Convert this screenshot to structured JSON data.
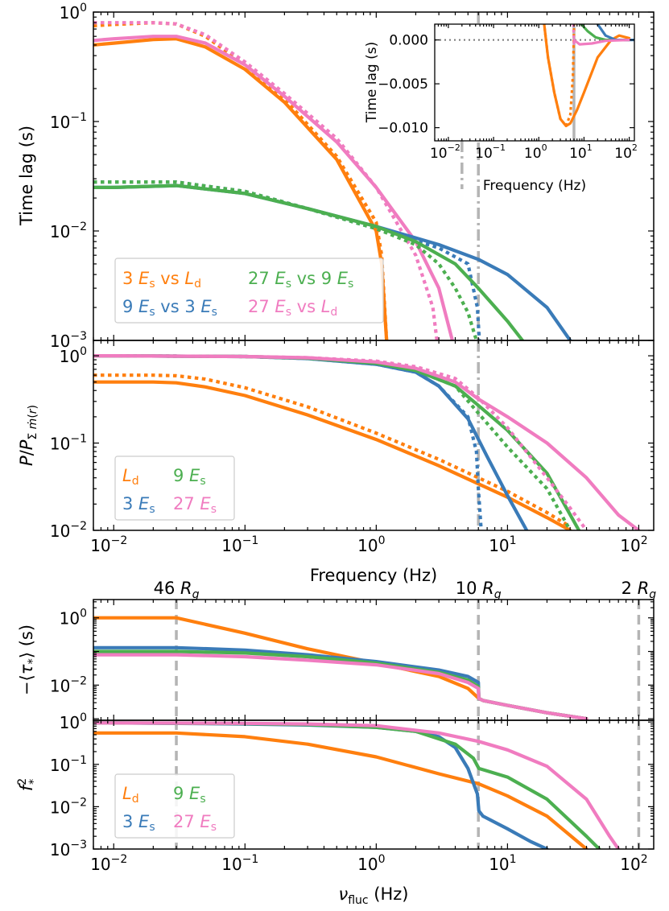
{
  "colors": {
    "orange": "#ff7f0e",
    "blue": "#3a7bb8",
    "green": "#4caf50",
    "pink": "#f07cc0",
    "gray": "#b4b4b4"
  },
  "radius_markers": [
    {
      "label": "46 R_g",
      "freq": 0.03
    },
    {
      "label": "10 R_g",
      "freq": 6.0
    },
    {
      "label": "2 R_g",
      "freq": 100
    }
  ],
  "chart_data": [
    {
      "type": "line",
      "ylabel": "Time lag (s)",
      "xlabel": "",
      "xscale": "log",
      "yscale": "log",
      "xlim": [
        0.007,
        130
      ],
      "ylim": [
        0.001,
        1.0
      ],
      "yticks": [
        "10^-3",
        "10^-2",
        "10^-1",
        "10^0"
      ],
      "vline": 6.0,
      "legend": {
        "placement": "lower-left",
        "entries": [
          "3 E_s vs L_d",
          "27 E_s vs 9 E_s",
          "9 E_s vs 3 E_s",
          "27 E_s vs L_d"
        ]
      },
      "series": [
        {
          "name": "3 E_s vs L_d",
          "color": "orange",
          "style": "solid",
          "x": [
            0.007,
            0.01,
            0.02,
            0.03,
            0.05,
            0.1,
            0.2,
            0.5,
            1,
            1.1,
            1.2
          ],
          "y": [
            0.5,
            0.52,
            0.56,
            0.57,
            0.48,
            0.3,
            0.15,
            0.045,
            0.01,
            0.005,
            0.001
          ]
        },
        {
          "name": "3 E_s vs L_d",
          "color": "orange",
          "style": "dotted",
          "x": [
            0.007,
            0.01,
            0.02,
            0.03,
            0.05,
            0.1,
            0.2,
            0.5,
            1,
            1.1,
            1.2
          ],
          "y": [
            0.75,
            0.77,
            0.8,
            0.78,
            0.6,
            0.33,
            0.16,
            0.048,
            0.012,
            0.006,
            0.001
          ]
        },
        {
          "name": "27 E_s vs L_d",
          "color": "pink",
          "style": "solid",
          "x": [
            0.007,
            0.01,
            0.02,
            0.03,
            0.05,
            0.1,
            0.2,
            0.5,
            1,
            2,
            3,
            3.8
          ],
          "y": [
            0.55,
            0.57,
            0.6,
            0.6,
            0.52,
            0.33,
            0.17,
            0.065,
            0.025,
            0.008,
            0.003,
            0.001
          ]
        },
        {
          "name": "27 E_s vs L_d",
          "color": "pink",
          "style": "dotted",
          "x": [
            0.007,
            0.01,
            0.02,
            0.03,
            0.05,
            0.1,
            0.2,
            0.5,
            1,
            2,
            2.7,
            2.9
          ],
          "y": [
            0.8,
            0.8,
            0.8,
            0.78,
            0.62,
            0.35,
            0.18,
            0.07,
            0.025,
            0.006,
            0.002,
            0.001
          ]
        },
        {
          "name": "9 E_s vs 3 E_s",
          "color": "blue",
          "style": "solid",
          "x": [
            0.007,
            0.01,
            0.03,
            0.1,
            0.3,
            1,
            3,
            6,
            10,
            20,
            30
          ],
          "y": [
            0.025,
            0.025,
            0.026,
            0.022,
            0.016,
            0.011,
            0.0075,
            0.0055,
            0.004,
            0.002,
            0.001
          ]
        },
        {
          "name": "9 E_s vs 3 E_s",
          "color": "blue",
          "style": "dotted",
          "x": [
            0.007,
            0.01,
            0.03,
            0.1,
            0.3,
            1,
            3,
            5,
            5.9,
            6.1
          ],
          "y": [
            0.028,
            0.028,
            0.028,
            0.023,
            0.016,
            0.0105,
            0.007,
            0.005,
            0.002,
            0.001
          ]
        },
        {
          "name": "27 E_s vs 9 E_s",
          "color": "green",
          "style": "solid",
          "x": [
            0.007,
            0.01,
            0.03,
            0.1,
            0.3,
            1,
            2,
            4,
            6,
            10,
            13
          ],
          "y": [
            0.025,
            0.025,
            0.026,
            0.022,
            0.016,
            0.011,
            0.008,
            0.005,
            0.003,
            0.0015,
            0.001
          ]
        },
        {
          "name": "27 E_s vs 9 E_s",
          "color": "green",
          "style": "dotted",
          "x": [
            0.007,
            0.01,
            0.03,
            0.1,
            0.3,
            1,
            2,
            3,
            4,
            5,
            5.8
          ],
          "y": [
            0.028,
            0.028,
            0.028,
            0.023,
            0.016,
            0.0105,
            0.0075,
            0.005,
            0.003,
            0.0018,
            0.001
          ]
        }
      ]
    },
    {
      "type": "line",
      "ylabel": "Time lag (s)",
      "xlabel": "Frequency (Hz)",
      "xscale": "log",
      "yscale": "linear",
      "xlim": [
        0.005,
        130
      ],
      "ylim": [
        -0.0115,
        0.0018
      ],
      "xticks": [
        "10^-2",
        "10^-1",
        "10^0",
        "10^1",
        "10^2"
      ],
      "yticks": [
        "0.000",
        "-0.005",
        "-0.010"
      ],
      "hline": 0.0,
      "vlines": [
        0.02,
        6.0
      ],
      "series": [
        {
          "name": "3 E_s vs L_d",
          "color": "orange",
          "style": "solid",
          "x": [
            1.3,
            1.6,
            2.2,
            3,
            4,
            5,
            7,
            10,
            20,
            40,
            60,
            100
          ],
          "y": [
            0.002,
            -0.002,
            -0.006,
            -0.009,
            -0.0098,
            -0.0095,
            -0.008,
            -0.006,
            -0.002,
            0.0,
            0.0005,
            0.0002
          ]
        },
        {
          "name": "3 E_s vs L_d",
          "color": "orange",
          "style": "dotted",
          "x": [
            1.3,
            1.6,
            2.2,
            3,
            4,
            5,
            5.7,
            6.05
          ],
          "y": [
            0.002,
            -0.002,
            -0.006,
            -0.009,
            -0.0098,
            -0.0085,
            -0.004,
            0.002
          ]
        },
        {
          "name": "27 E_s vs 9 E_s",
          "color": "green",
          "style": "solid",
          "x": [
            8,
            12,
            18,
            30,
            60,
            100
          ],
          "y": [
            0.002,
            0.001,
            0.0003,
            0.0,
            0.0,
            0.0
          ]
        },
        {
          "name": "9 E_s vs 3 E_s",
          "color": "blue",
          "style": "solid",
          "x": [
            20,
            30,
            50,
            80,
            130
          ],
          "y": [
            0.0018,
            0.0005,
            0.0,
            0.0,
            0.0
          ]
        },
        {
          "name": "27 E_s vs L_d",
          "color": "pink",
          "style": "solid",
          "x": [
            6,
            8,
            15,
            30,
            100
          ],
          "y": [
            0.0,
            -0.0005,
            -0.0004,
            -0.0001,
            0.0
          ]
        },
        {
          "name": "27 E_s vs L_d",
          "color": "pink",
          "style": "dotted",
          "x": [
            5.8,
            6.0,
            6.2
          ],
          "y": [
            0.0018,
            -0.0004,
            0.0
          ]
        }
      ]
    },
    {
      "type": "line",
      "ylabel": "P/P_Σṁ(r)",
      "xlabel": "Frequency (Hz)",
      "xscale": "log",
      "yscale": "log",
      "xlim": [
        0.007,
        130
      ],
      "ylim": [
        0.01,
        1.5
      ],
      "xticks": [
        "10^-2",
        "10^-1",
        "10^0",
        "10^1",
        "10^2"
      ],
      "yticks": [
        "10^-2",
        "10^-1",
        "10^0"
      ],
      "vline": 6.0,
      "legend": {
        "placement": "lower-left",
        "entries": [
          "L_d",
          "9 E_s",
          "3 E_s",
          "27 E_s"
        ]
      },
      "series": [
        {
          "name": "L_d",
          "color": "orange",
          "style": "solid",
          "x": [
            0.007,
            0.01,
            0.02,
            0.03,
            0.05,
            0.1,
            0.3,
            1,
            3,
            10,
            20,
            30
          ],
          "y": [
            0.5,
            0.5,
            0.5,
            0.49,
            0.44,
            0.35,
            0.21,
            0.11,
            0.055,
            0.024,
            0.014,
            0.01
          ]
        },
        {
          "name": "L_d",
          "color": "orange",
          "style": "dotted",
          "x": [
            0.007,
            0.01,
            0.02,
            0.03,
            0.05,
            0.1,
            0.3,
            1,
            3,
            10,
            20,
            30
          ],
          "y": [
            0.6,
            0.6,
            0.6,
            0.59,
            0.54,
            0.43,
            0.26,
            0.13,
            0.065,
            0.028,
            0.016,
            0.011
          ]
        },
        {
          "name": "3 E_s",
          "color": "blue",
          "style": "solid",
          "x": [
            0.007,
            0.01,
            0.1,
            0.3,
            1,
            2,
            3,
            5,
            7,
            10,
            14
          ],
          "y": [
            1.0,
            1.0,
            0.98,
            0.93,
            0.8,
            0.65,
            0.45,
            0.19,
            0.07,
            0.025,
            0.01
          ]
        },
        {
          "name": "3 E_s",
          "color": "blue",
          "style": "dotted",
          "x": [
            0.007,
            0.01,
            0.1,
            0.3,
            1,
            2,
            3,
            5,
            5.8,
            6,
            6.3
          ],
          "y": [
            1.0,
            1.0,
            0.98,
            0.93,
            0.8,
            0.65,
            0.45,
            0.2,
            0.08,
            0.03,
            0.01
          ]
        },
        {
          "name": "9 E_s",
          "color": "green",
          "style": "solid",
          "x": [
            0.007,
            0.01,
            0.1,
            0.3,
            1,
            2,
            4,
            6,
            10,
            20,
            35
          ],
          "y": [
            1.0,
            1.0,
            0.98,
            0.94,
            0.82,
            0.68,
            0.45,
            0.27,
            0.14,
            0.045,
            0.01
          ]
        },
        {
          "name": "9 E_s",
          "color": "green",
          "style": "dotted",
          "x": [
            0.007,
            0.01,
            0.1,
            0.3,
            1,
            2,
            4,
            6,
            10,
            20,
            30
          ],
          "y": [
            1.0,
            1.0,
            0.98,
            0.94,
            0.82,
            0.68,
            0.45,
            0.22,
            0.09,
            0.03,
            0.01
          ]
        },
        {
          "name": "27 E_s",
          "color": "pink",
          "style": "solid",
          "x": [
            0.007,
            0.01,
            0.1,
            0.3,
            1,
            2,
            4,
            6,
            10,
            20,
            40,
            70,
            100
          ],
          "y": [
            1.0,
            1.0,
            0.98,
            0.95,
            0.85,
            0.72,
            0.5,
            0.32,
            0.2,
            0.1,
            0.04,
            0.015,
            0.01
          ]
        },
        {
          "name": "27 E_s",
          "color": "pink",
          "style": "dotted",
          "x": [
            0.007,
            0.01,
            0.1,
            0.3,
            1,
            2,
            4,
            6,
            10,
            20,
            30,
            40
          ],
          "y": [
            1.0,
            1.0,
            0.98,
            0.95,
            0.87,
            0.75,
            0.55,
            0.33,
            0.15,
            0.04,
            0.018,
            0.01
          ]
        }
      ]
    },
    {
      "type": "line",
      "ylabel": "−⟨τ*⟩ (s)",
      "xlabel": "",
      "xscale": "log",
      "yscale": "log",
      "xlim": [
        0.007,
        130
      ],
      "ylim": [
        0.0009,
        3.5
      ],
      "yticks": [
        "10^-2",
        "10^0"
      ],
      "vlines": [
        0.03,
        6.0,
        100
      ],
      "series": [
        {
          "name": "L_d",
          "color": "orange",
          "style": "solid",
          "x": [
            0.007,
            0.01,
            0.02,
            0.03,
            0.1,
            0.3,
            1,
            3,
            5,
            6.05,
            6.5,
            10,
            20,
            40
          ],
          "y": [
            1.0,
            1.0,
            1.0,
            1.0,
            0.35,
            0.12,
            0.045,
            0.018,
            0.008,
            0.004,
            0.0035,
            0.0025,
            0.0015,
            0.001
          ]
        },
        {
          "name": "3 E_s",
          "color": "blue",
          "style": "solid",
          "x": [
            0.007,
            0.01,
            0.03,
            0.1,
            0.3,
            1,
            3,
            5,
            6,
            6.05,
            6.5,
            10,
            20,
            40
          ],
          "y": [
            0.13,
            0.13,
            0.13,
            0.11,
            0.08,
            0.05,
            0.028,
            0.018,
            0.012,
            0.004,
            0.0035,
            0.0025,
            0.0015,
            0.001
          ]
        },
        {
          "name": "9 E_s",
          "color": "green",
          "style": "solid",
          "x": [
            0.007,
            0.01,
            0.03,
            0.1,
            0.3,
            1,
            3,
            5,
            6,
            6.05,
            6.5,
            10,
            20,
            40
          ],
          "y": [
            0.1,
            0.1,
            0.1,
            0.09,
            0.07,
            0.045,
            0.024,
            0.014,
            0.009,
            0.004,
            0.0035,
            0.0025,
            0.0015,
            0.001
          ]
        },
        {
          "name": "27 E_s",
          "color": "pink",
          "style": "solid",
          "x": [
            0.007,
            0.01,
            0.03,
            0.1,
            0.3,
            1,
            3,
            5,
            6,
            6.05,
            6.5,
            10,
            20,
            40
          ],
          "y": [
            0.08,
            0.08,
            0.08,
            0.07,
            0.055,
            0.04,
            0.022,
            0.012,
            0.008,
            0.004,
            0.0035,
            0.0025,
            0.0015,
            0.001
          ]
        }
      ]
    },
    {
      "type": "line",
      "ylabel": "f²*",
      "xlabel": "ν_fluc (Hz)",
      "xscale": "log",
      "yscale": "log",
      "xlim": [
        0.007,
        130
      ],
      "ylim": [
        0.001,
        1.1
      ],
      "xticks": [
        "10^-2",
        "10^-1",
        "10^0",
        "10^1",
        "10^2"
      ],
      "yticks": [
        "10^-3",
        "10^-2",
        "10^-1",
        "10^0"
      ],
      "vlines": [
        0.03,
        6.0,
        100
      ],
      "legend": {
        "placement": "lower-left",
        "entries": [
          "L_d",
          "9 E_s",
          "3 E_s",
          "27 E_s"
        ]
      },
      "series": [
        {
          "name": "L_d",
          "color": "orange",
          "style": "solid",
          "x": [
            0.007,
            0.01,
            0.03,
            0.1,
            0.3,
            1,
            3,
            6,
            10,
            20,
            40
          ],
          "y": [
            0.55,
            0.55,
            0.55,
            0.45,
            0.3,
            0.15,
            0.06,
            0.035,
            0.018,
            0.006,
            0.001
          ]
        },
        {
          "name": "3 E_s",
          "color": "blue",
          "style": "solid",
          "x": [
            0.007,
            0.01,
            0.1,
            0.3,
            1,
            2,
            3,
            4,
            5,
            5.9,
            6.05,
            6.5,
            10,
            15,
            20
          ],
          "y": [
            0.95,
            0.95,
            0.9,
            0.85,
            0.75,
            0.6,
            0.45,
            0.25,
            0.08,
            0.02,
            0.008,
            0.006,
            0.003,
            0.0015,
            0.001
          ]
        },
        {
          "name": "9 E_s",
          "color": "green",
          "style": "solid",
          "x": [
            0.007,
            0.01,
            0.1,
            0.3,
            1,
            2,
            4,
            5.5,
            6.05,
            6.5,
            10,
            20,
            40,
            50
          ],
          "y": [
            0.95,
            0.95,
            0.92,
            0.87,
            0.75,
            0.6,
            0.3,
            0.14,
            0.08,
            0.075,
            0.05,
            0.015,
            0.002,
            0.001
          ]
        },
        {
          "name": "27 E_s",
          "color": "pink",
          "style": "solid",
          "x": [
            0.007,
            0.01,
            0.1,
            0.3,
            1,
            3,
            6,
            10,
            20,
            40,
            60,
            70
          ],
          "y": [
            0.95,
            0.95,
            0.93,
            0.9,
            0.82,
            0.55,
            0.35,
            0.22,
            0.09,
            0.015,
            0.002,
            0.001
          ]
        }
      ]
    }
  ],
  "text": {
    "p1_ylabel": "Time lag (s)",
    "inset_ylabel": "Time lag (s)",
    "inset_xlabel": "Frequency (Hz)",
    "p2_xlabel": "Frequency (Hz)",
    "p3_ylabel": "−⟨τ*⟩ (s)",
    "p4_xlabel": "ν",
    "p4_xlabel_sub": "fluc",
    "p4_xlabel_unit": " (Hz)"
  }
}
